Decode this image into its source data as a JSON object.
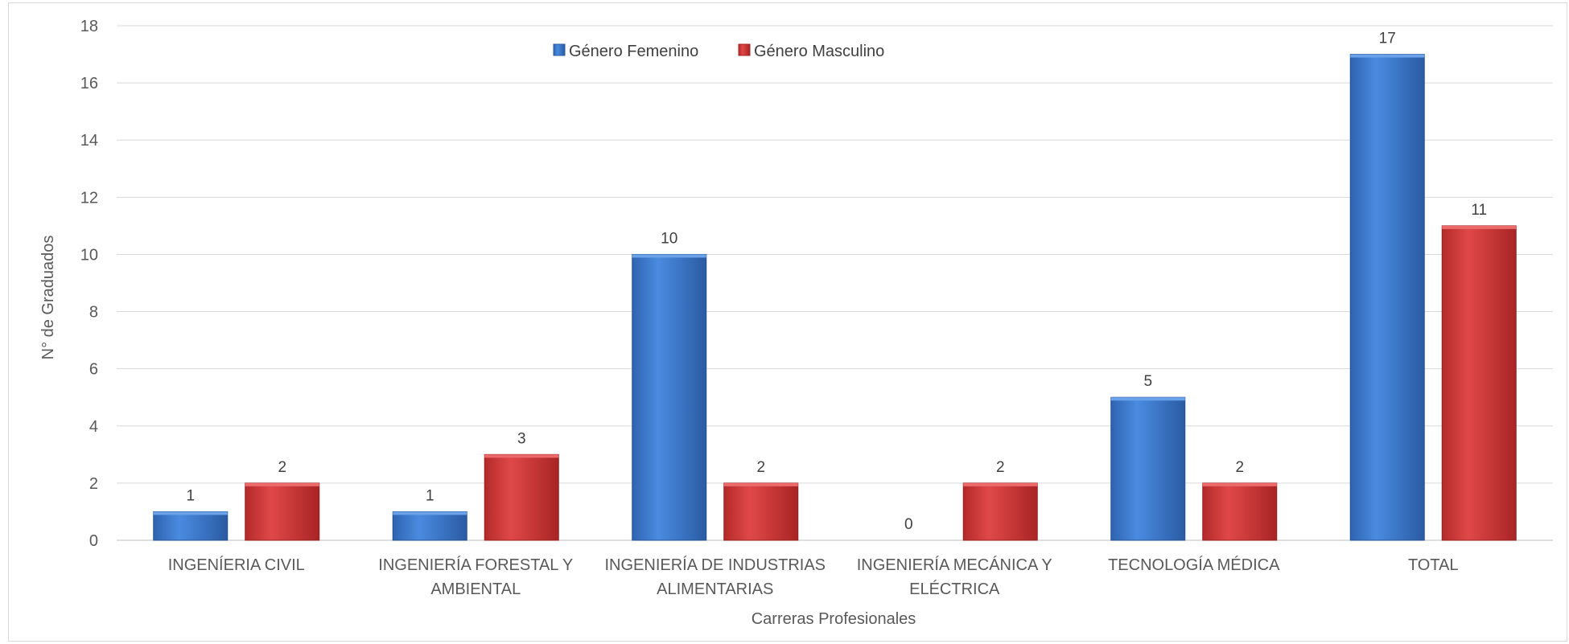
{
  "chart_data": {
    "type": "bar",
    "xlabel": "Carreras Profesionales",
    "ylabel": "N° de Graduados",
    "ylim": [
      0,
      18
    ],
    "y_ticks": [
      0,
      2,
      4,
      6,
      8,
      10,
      12,
      14,
      16,
      18
    ],
    "grid": true,
    "legend_position": "top-center",
    "categories": [
      [
        "INGENÍERIA CIVIL"
      ],
      [
        "INGENIERÍA FORESTAL Y",
        "AMBIENTAL"
      ],
      [
        "INGENIERÍA DE INDUSTRIAS",
        "ALIMENTARIAS"
      ],
      [
        "INGENIERÍA MECÁNICA Y",
        "ELÉCTRICA"
      ],
      [
        "TECNOLOGÍA MÉDICA"
      ],
      [
        "TOTAL"
      ]
    ],
    "series": [
      {
        "name": "Género Femenino",
        "color": "#3a7bd5",
        "values": [
          1,
          1,
          10,
          0,
          5,
          17
        ]
      },
      {
        "name": "Género Masculino",
        "color": "#d63a3a",
        "values": [
          2,
          3,
          2,
          2,
          2,
          11
        ]
      }
    ]
  }
}
